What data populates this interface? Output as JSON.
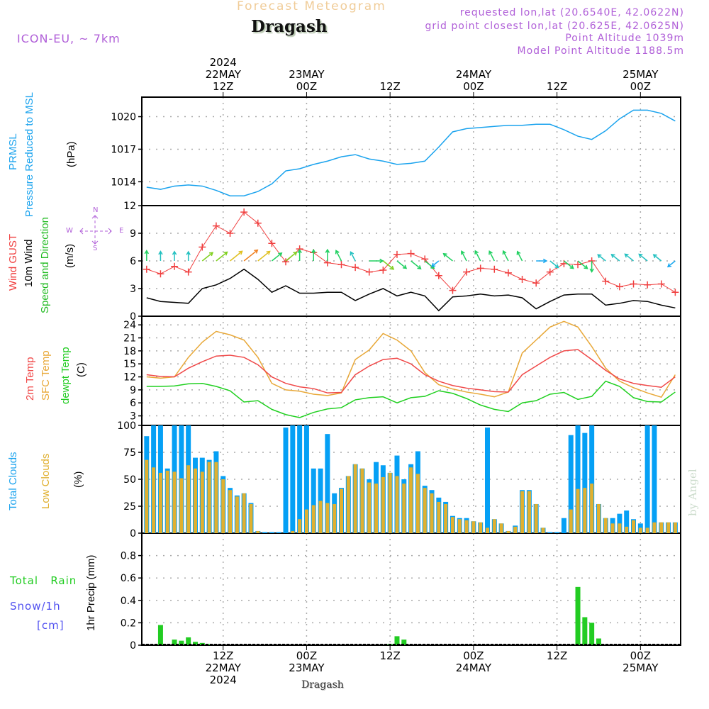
{
  "header": {
    "subtitle": "Forecast Meteogram",
    "title": "Dragash",
    "model": "ICON-EU, ~ 7km",
    "requested": "requested lon,lat (20.6540E, 42.0622N)",
    "gridpoint": "grid point closest lon,lat (20.625E, 42.0625N)",
    "point_alt": "Point Altitude 1039m",
    "model_alt": "Model Point Altitude 1188.5m",
    "footer_place": "Dragash",
    "credit": "by Angel"
  },
  "axis_labels": {
    "prmsl_1": "PRMSL",
    "prmsl_2": "Pressure Reduced to MSL",
    "prmsl_unit": "(hPa)",
    "wind_1": "Wind GUST",
    "wind_2": "10m Wind",
    "wind_3": "Speed and Direction",
    "wind_unit": "(m/s)",
    "compass_n": "N",
    "compass_s": "S",
    "compass_w": "W",
    "compass_e": "E",
    "temp_1": "2m Temp",
    "temp_2": "SFC Temp",
    "temp_3": "dewpt Temp",
    "temp_unit": "(C)",
    "cloud_1": "Total Clouds",
    "cloud_2": "Low Clouds",
    "cloud_unit": "(%)",
    "precip_unit": "1hr Precip (mm)",
    "rain_label": "Total   Rain",
    "snow_label": "Snow/1h",
    "snow_unit": "[cm]"
  },
  "colors": {
    "pressure": "#1aa3ee",
    "gust": "#f04040",
    "wind": "#000000",
    "t2m": "#f04848",
    "tsfc": "#e8a838",
    "dewpt": "#20d020",
    "total_clouds": "#05a0f5",
    "low_clouds": "#e0b030",
    "rain": "#22cc22",
    "snow": "#5050f0",
    "label_purple": "#b05fd8"
  },
  "chart_data": [
    {
      "type": "line",
      "title": "PRMSL Pressure Reduced to MSL",
      "ylabel": "(hPa)",
      "ylim": [
        1011.8,
        1021.8
      ],
      "yticks": [
        1014,
        1017,
        1020
      ],
      "x_hours": [
        1,
        3,
        5,
        7,
        9,
        11,
        13,
        15,
        17,
        19,
        21,
        23,
        25,
        27,
        29,
        31,
        33,
        35,
        37,
        39,
        41,
        43,
        45,
        47,
        49,
        51,
        53,
        55,
        57,
        59,
        61,
        63,
        65,
        67,
        69,
        71,
        73,
        75,
        77
      ],
      "values": [
        1013.5,
        1013.3,
        1013.6,
        1013.7,
        1013.6,
        1013.2,
        1012.7,
        1012.7,
        1013.1,
        1013.8,
        1015.0,
        1015.2,
        1015.6,
        1015.9,
        1016.3,
        1016.5,
        1016.1,
        1015.9,
        1015.6,
        1015.7,
        1015.9,
        1017.2,
        1018.6,
        1018.9,
        1019.0,
        1019.1,
        1019.2,
        1019.2,
        1019.3,
        1019.3,
        1018.8,
        1018.2,
        1017.9,
        1018.7,
        1019.8,
        1020.6,
        1020.6,
        1020.3,
        1019.6
      ],
      "grid": true
    },
    {
      "type": "line",
      "title": "Wind GUST / 10m Wind Speed and Direction",
      "ylabel": "(m/s)",
      "ylim": [
        0,
        12
      ],
      "yticks": [
        0,
        3,
        6,
        9,
        12
      ],
      "x_hours": [
        1,
        3,
        5,
        7,
        9,
        11,
        13,
        15,
        17,
        19,
        21,
        23,
        25,
        27,
        29,
        31,
        33,
        35,
        37,
        39,
        41,
        43,
        45,
        47,
        49,
        51,
        53,
        55,
        57,
        59,
        61,
        63,
        65,
        67,
        69,
        71,
        73,
        75,
        77
      ],
      "series": [
        {
          "name": "Wind GUST",
          "values": [
            5.1,
            4.6,
            5.4,
            4.8,
            7.5,
            9.8,
            9.0,
            11.3,
            10.1,
            7.9,
            5.9,
            7.3,
            6.9,
            5.8,
            5.6,
            5.3,
            4.8,
            5.0,
            6.7,
            6.8,
            6.2,
            4.4,
            2.8,
            4.8,
            5.2,
            5.1,
            4.7,
            4.0,
            3.6,
            4.8,
            5.7,
            5.6,
            6.0,
            3.8,
            3.2,
            3.5,
            3.4,
            3.5,
            2.6
          ]
        },
        {
          "name": "10m Wind",
          "values": [
            2.0,
            1.6,
            1.5,
            1.4,
            3.0,
            3.4,
            4.1,
            5.1,
            4.0,
            2.6,
            3.3,
            2.5,
            2.5,
            2.6,
            2.6,
            1.7,
            2.4,
            3.0,
            2.2,
            2.6,
            2.2,
            0.6,
            2.1,
            2.2,
            2.4,
            2.2,
            2.3,
            2.0,
            0.8,
            1.6,
            2.3,
            2.4,
            2.4,
            1.2,
            1.4,
            1.7,
            1.6,
            1.2,
            0.9
          ]
        }
      ],
      "wind_arrow_directions": [
        "S",
        "S",
        "S",
        "S",
        "SW",
        "SW",
        "SW",
        "SW",
        "SW",
        "SW",
        "SW",
        "S",
        "S",
        "S",
        "SSE",
        "SSE",
        "W",
        "NW",
        "NW",
        "NW",
        "NW",
        "NE",
        "SE",
        "SSE",
        "SSE",
        "SSE",
        "SSE",
        "SSE",
        "W",
        "NW",
        "NW",
        "NW",
        "N",
        "SE",
        "SE",
        "SE",
        "SE",
        "SE",
        "NE"
      ],
      "grid": true
    },
    {
      "type": "line",
      "title": "2m Temp / SFC Temp / dewpt Temp",
      "ylabel": "(C)",
      "ylim": [
        0.8,
        26
      ],
      "yticks": [
        3,
        6,
        9,
        12,
        15,
        18,
        21,
        24
      ],
      "x_hours": [
        1,
        3,
        5,
        7,
        9,
        11,
        13,
        15,
        17,
        19,
        21,
        23,
        25,
        27,
        29,
        31,
        33,
        35,
        37,
        39,
        41,
        43,
        45,
        47,
        49,
        51,
        53,
        55,
        57,
        59,
        61,
        63,
        65,
        67,
        69,
        71,
        73,
        75,
        77
      ],
      "series": [
        {
          "name": "2m Temp",
          "values": [
            12.5,
            12.1,
            12.0,
            14.0,
            15.5,
            16.8,
            17.0,
            16.5,
            14.8,
            12.0,
            10.5,
            9.7,
            9.3,
            8.3,
            8.4,
            12.5,
            14.5,
            16.0,
            16.3,
            15.0,
            12.5,
            11.0,
            10.0,
            9.4,
            9.0,
            8.6,
            8.5,
            12.5,
            14.5,
            16.5,
            18.0,
            18.3,
            16.0,
            13.5,
            11.5,
            10.5,
            10.0,
            9.6,
            12.0
          ]
        },
        {
          "name": "SFC Temp",
          "values": [
            12.0,
            11.7,
            12.0,
            16.5,
            20.0,
            22.5,
            21.7,
            20.5,
            16.5,
            10.5,
            9.0,
            8.7,
            8.0,
            7.7,
            8.3,
            16.0,
            18.2,
            22.0,
            20.5,
            18.0,
            13.0,
            10.2,
            9.2,
            8.5,
            8.0,
            7.4,
            8.5,
            17.5,
            20.5,
            23.5,
            24.8,
            23.5,
            19.0,
            14.0,
            11.0,
            9.5,
            8.3,
            7.3,
            12.5
          ]
        },
        {
          "name": "dewpt Temp",
          "values": [
            9.8,
            9.8,
            9.9,
            10.4,
            10.5,
            9.8,
            8.8,
            6.2,
            6.5,
            4.5,
            3.3,
            2.6,
            3.8,
            4.6,
            4.9,
            6.7,
            7.2,
            7.4,
            6.0,
            7.2,
            7.5,
            8.8,
            8.2,
            7.0,
            5.5,
            4.5,
            4.0,
            6.0,
            6.5,
            8.0,
            8.4,
            6.8,
            7.5,
            11.0,
            9.8,
            7.2,
            6.3,
            6.2,
            8.5
          ]
        }
      ],
      "grid": true
    },
    {
      "type": "bar",
      "title": "Total Clouds / Low Clouds",
      "ylabel": "(%)",
      "ylim": [
        0,
        100
      ],
      "yticks": [
        0,
        25,
        50,
        75,
        100
      ],
      "x_hours": [
        1,
        2,
        3,
        4,
        5,
        6,
        7,
        8,
        9,
        10,
        11,
        12,
        13,
        14,
        15,
        16,
        17,
        18,
        19,
        20,
        21,
        22,
        23,
        24,
        25,
        26,
        27,
        28,
        29,
        30,
        31,
        32,
        33,
        34,
        35,
        36,
        37,
        38,
        39,
        40,
        41,
        42,
        43,
        44,
        45,
        46,
        47,
        48,
        49,
        50,
        51,
        52,
        53,
        54,
        55,
        56,
        57,
        58,
        59,
        60,
        61,
        62,
        63,
        64,
        65,
        66,
        67,
        68,
        69,
        70,
        71,
        72,
        73,
        74,
        75,
        76,
        77
      ],
      "series": [
        {
          "name": "Total Clouds",
          "values": [
            90,
            100,
            100,
            60,
            100,
            100,
            100,
            70,
            70,
            68,
            76,
            53,
            42,
            35,
            37,
            28,
            2,
            1,
            1,
            1,
            98,
            100,
            100,
            100,
            60,
            60,
            92,
            37,
            42,
            53,
            64,
            60,
            50,
            66,
            63,
            56,
            72,
            50,
            64,
            76,
            44,
            40,
            33,
            29,
            16,
            14,
            14,
            11,
            10,
            98,
            13,
            9,
            2,
            7,
            40,
            40,
            27,
            5,
            1,
            1,
            14,
            91,
            100,
            93,
            100,
            27,
            14,
            14,
            18,
            21,
            13,
            9,
            100,
            100,
            10,
            10,
            10
          ]
        },
        {
          "name": "Low Clouds",
          "values": [
            68,
            61,
            56,
            58,
            57,
            51,
            63,
            60,
            57,
            66,
            66,
            50,
            40,
            34,
            37,
            27,
            2,
            0,
            0,
            0,
            0,
            2,
            13,
            22,
            26,
            30,
            28,
            27,
            41,
            53,
            64,
            60,
            47,
            46,
            52,
            56,
            53,
            46,
            61,
            55,
            42,
            37,
            29,
            27,
            15,
            13,
            12,
            11,
            10,
            5,
            13,
            9,
            2,
            6,
            39,
            39,
            27,
            5,
            0,
            0,
            0,
            22,
            41,
            42,
            46,
            27,
            14,
            9,
            9,
            6,
            12,
            5,
            5,
            10,
            10,
            10,
            10
          ]
        }
      ],
      "grid": true
    },
    {
      "type": "bar",
      "title": "1hr Precip",
      "ylabel": "1hr Precip (mm)",
      "ylim": [
        0,
        1.0
      ],
      "yticks": [
        0,
        0.2,
        0.4,
        0.6,
        0.8
      ],
      "yticklabels": [
        "0",
        "0.2",
        "0.4",
        "0.6",
        "0.8"
      ],
      "x_hours": [
        3,
        5,
        6,
        7,
        8,
        9,
        10,
        36,
        37,
        38,
        63,
        64,
        65,
        66
      ],
      "series": [
        {
          "name": "Total Rain",
          "values": [
            0.18,
            0.05,
            0.04,
            0.07,
            0.03,
            0.02,
            0.01,
            0.01,
            0.08,
            0.05,
            0.52,
            0.25,
            0.2,
            0.06
          ]
        },
        {
          "name": "Snow/1h",
          "values": [
            0,
            0,
            0,
            0,
            0,
            0,
            0,
            0,
            0,
            0,
            0,
            0,
            0,
            0
          ]
        }
      ],
      "grid": true
    }
  ],
  "time_axis": {
    "top_ticks": [
      {
        "hour": 12,
        "lines": [
          "2024",
          "22MAY",
          "12Z"
        ]
      },
      {
        "hour": 24,
        "lines": [
          "23MAY",
          "00Z"
        ]
      },
      {
        "hour": 36,
        "lines": [
          "12Z"
        ]
      },
      {
        "hour": 48,
        "lines": [
          "24MAY",
          "00Z"
        ]
      },
      {
        "hour": 60,
        "lines": [
          "12Z"
        ]
      },
      {
        "hour": 72,
        "lines": [
          "25MAY",
          "00Z"
        ]
      }
    ],
    "bottom_ticks": [
      {
        "hour": 12,
        "lines": [
          "12Z",
          "22MAY",
          "2024"
        ]
      },
      {
        "hour": 24,
        "lines": [
          "00Z",
          "23MAY"
        ]
      },
      {
        "hour": 36,
        "lines": [
          "12Z"
        ]
      },
      {
        "hour": 48,
        "lines": [
          "00Z",
          "24MAY"
        ]
      },
      {
        "hour": 60,
        "lines": [
          "12Z"
        ]
      },
      {
        "hour": 72,
        "lines": [
          "00Z",
          "25MAY"
        ]
      }
    ]
  }
}
